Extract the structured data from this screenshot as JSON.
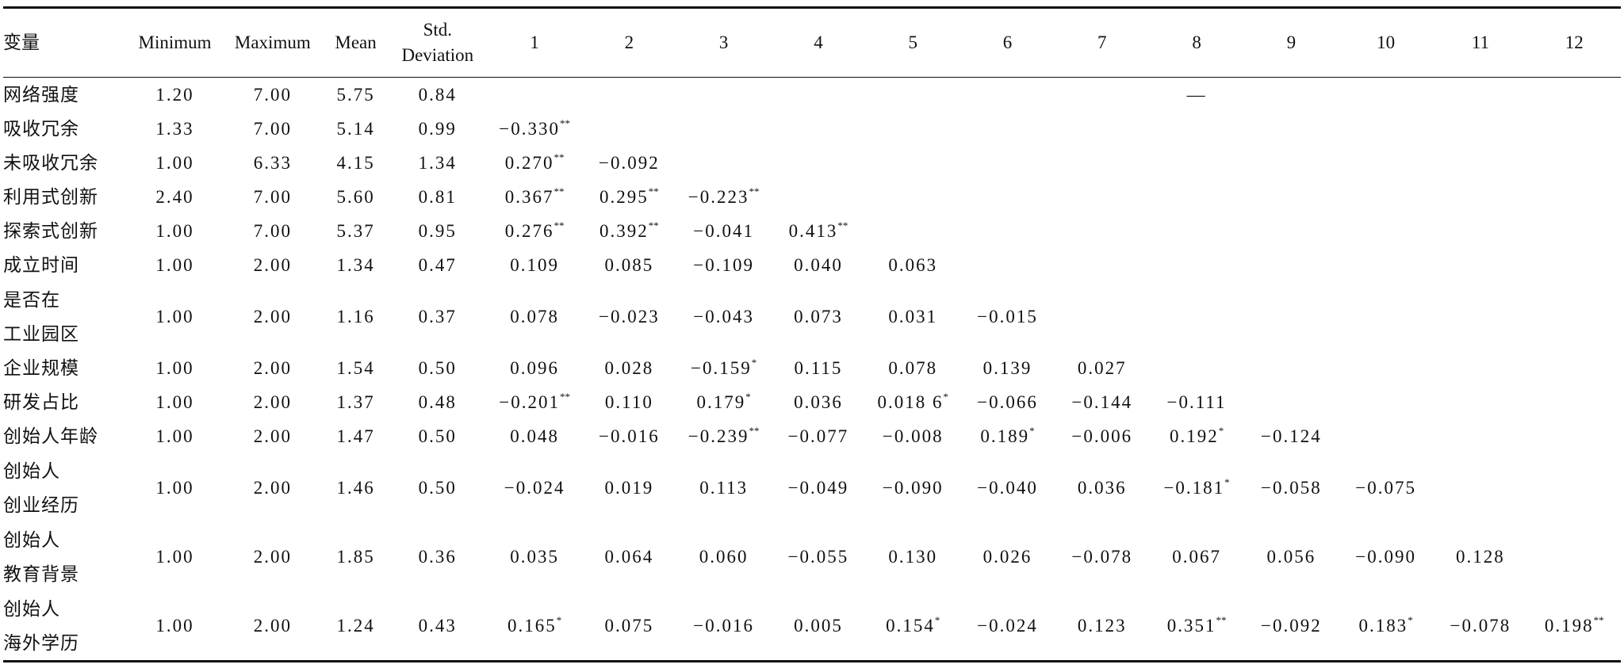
{
  "table": {
    "header": [
      [
        "变量"
      ],
      [
        "Minimum"
      ],
      [
        "Maximum"
      ],
      [
        "Mean"
      ],
      [
        "Std.",
        "Deviation"
      ],
      [
        "1"
      ],
      [
        "2"
      ],
      [
        "3"
      ],
      [
        "4"
      ],
      [
        "5"
      ],
      [
        "6"
      ],
      [
        "7"
      ],
      [
        "8"
      ],
      [
        "9"
      ],
      [
        "10"
      ],
      [
        "11"
      ],
      [
        "12"
      ]
    ],
    "rows": [
      {
        "label": [
          "网络强度"
        ],
        "cells": [
          "1.20",
          "7.00",
          "5.75",
          "0.84",
          null,
          null,
          null,
          null,
          null,
          null,
          null,
          {
            "text": "—"
          }
        ]
      },
      {
        "label": [
          "吸收冗余"
        ],
        "cells": [
          "1.33",
          "7.00",
          "5.14",
          "0.99",
          {
            "text": "−0.330",
            "sup": "**"
          }
        ]
      },
      {
        "label": [
          "未吸收冗余"
        ],
        "cells": [
          "1.00",
          "6.33",
          "4.15",
          "1.34",
          {
            "text": "0.270",
            "sup": "**"
          },
          {
            "text": "−0.092"
          }
        ]
      },
      {
        "label": [
          "利用式创新"
        ],
        "cells": [
          "2.40",
          "7.00",
          "5.60",
          "0.81",
          {
            "text": "0.367",
            "sup": "**"
          },
          {
            "text": "0.295",
            "sup": "**"
          },
          {
            "text": "−0.223",
            "sup": "**"
          }
        ]
      },
      {
        "label": [
          "探索式创新"
        ],
        "cells": [
          "1.00",
          "7.00",
          "5.37",
          "0.95",
          {
            "text": "0.276",
            "sup": "**"
          },
          {
            "text": "0.392",
            "sup": "**"
          },
          {
            "text": "−0.041"
          },
          {
            "text": "0.413",
            "sup": "**"
          }
        ]
      },
      {
        "label": [
          "成立时间"
        ],
        "cells": [
          "1.00",
          "2.00",
          "1.34",
          "0.47",
          {
            "text": "0.109"
          },
          {
            "text": "0.085"
          },
          {
            "text": "−0.109"
          },
          {
            "text": "0.040"
          },
          {
            "text": "0.063"
          }
        ]
      },
      {
        "label": [
          "是否在",
          "工业园区"
        ],
        "cells": [
          "1.00",
          "2.00",
          "1.16",
          "0.37",
          {
            "text": "0.078"
          },
          {
            "text": "−0.023"
          },
          {
            "text": "−0.043"
          },
          {
            "text": "0.073"
          },
          {
            "text": "0.031"
          },
          {
            "text": "−0.015"
          }
        ]
      },
      {
        "label": [
          "企业规模"
        ],
        "cells": [
          "1.00",
          "2.00",
          "1.54",
          "0.50",
          {
            "text": "0.096"
          },
          {
            "text": "0.028"
          },
          {
            "text": "−0.159",
            "sup": "*"
          },
          {
            "text": "0.115"
          },
          {
            "text": "0.078"
          },
          {
            "text": "0.139"
          },
          {
            "text": "0.027"
          }
        ]
      },
      {
        "label": [
          "研发占比"
        ],
        "cells": [
          "1.00",
          "2.00",
          "1.37",
          "0.48",
          {
            "text": "−0.201",
            "sup": "**"
          },
          {
            "text": "0.110"
          },
          {
            "text": "0.179",
            "sup": "*"
          },
          {
            "text": "0.036"
          },
          {
            "text": "0.018 6",
            "sup": "*"
          },
          {
            "text": "−0.066"
          },
          {
            "text": "−0.144"
          },
          {
            "text": "−0.111"
          }
        ]
      },
      {
        "label": [
          "创始人年龄"
        ],
        "cells": [
          "1.00",
          "2.00",
          "1.47",
          "0.50",
          {
            "text": "0.048"
          },
          {
            "text": "−0.016"
          },
          {
            "text": "−0.239",
            "sup": "**"
          },
          {
            "text": "−0.077"
          },
          {
            "text": "−0.008"
          },
          {
            "text": "0.189",
            "sup": "*"
          },
          {
            "text": "−0.006"
          },
          {
            "text": "0.192",
            "sup": "*"
          },
          {
            "text": "−0.124"
          }
        ]
      },
      {
        "label": [
          "创始人",
          "创业经历"
        ],
        "cells": [
          "1.00",
          "2.00",
          "1.46",
          "0.50",
          {
            "text": "−0.024"
          },
          {
            "text": "0.019"
          },
          {
            "text": "0.113"
          },
          {
            "text": "−0.049"
          },
          {
            "text": "−0.090"
          },
          {
            "text": "−0.040"
          },
          {
            "text": "0.036"
          },
          {
            "text": "−0.181",
            "sup": "*"
          },
          {
            "text": "−0.058"
          },
          {
            "text": "−0.075"
          }
        ]
      },
      {
        "label": [
          "创始人",
          "教育背景"
        ],
        "cells": [
          "1.00",
          "2.00",
          "1.85",
          "0.36",
          {
            "text": "0.035"
          },
          {
            "text": "0.064"
          },
          {
            "text": "0.060"
          },
          {
            "text": "−0.055"
          },
          {
            "text": "0.130"
          },
          {
            "text": "0.026"
          },
          {
            "text": "−0.078"
          },
          {
            "text": "0.067"
          },
          {
            "text": "0.056"
          },
          {
            "text": "−0.090"
          },
          {
            "text": "0.128"
          }
        ]
      },
      {
        "label": [
          "创始人",
          "海外学历"
        ],
        "cells": [
          "1.00",
          "2.00",
          "1.24",
          "0.43",
          {
            "text": "0.165",
            "sup": "*"
          },
          {
            "text": "0.075"
          },
          {
            "text": "−0.016"
          },
          {
            "text": "0.005"
          },
          {
            "text": "0.154",
            "sup": "*"
          },
          {
            "text": "−0.024"
          },
          {
            "text": "0.123"
          },
          {
            "text": "0.351",
            "sup": "**"
          },
          {
            "text": "−0.092"
          },
          {
            "text": "0.183",
            "sup": "*"
          },
          {
            "text": "−0.078"
          },
          {
            "text": "0.198",
            "sup": "**"
          }
        ]
      }
    ]
  }
}
